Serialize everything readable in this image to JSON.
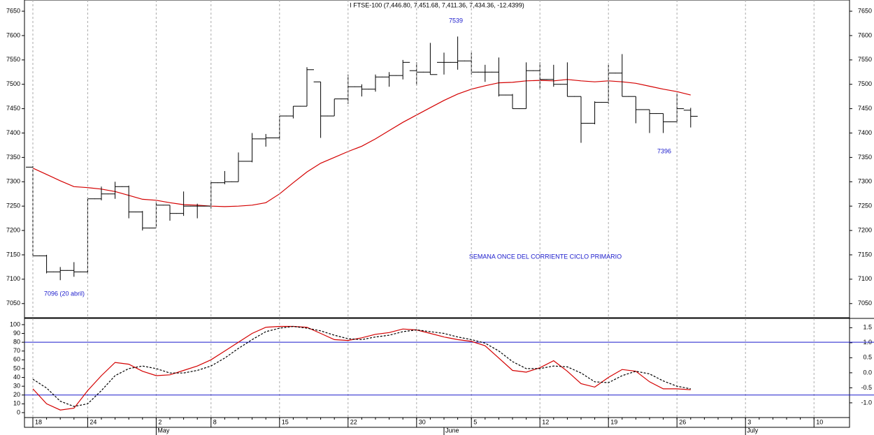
{
  "chart_data": [
    {
      "type": "ohlc",
      "title": "I FTSE-100 (7,446.80, 7,451.68, 7,411.36, 7,434.36, -12.4399)",
      "color": "#000000",
      "ylim": [
        7021,
        7673
      ],
      "yticks": [
        7050,
        7100,
        7150,
        7200,
        7250,
        7300,
        7350,
        7400,
        7450,
        7500,
        7550,
        7600,
        7650
      ],
      "open": [
        7330,
        7148,
        7115,
        7118,
        7115,
        7265,
        7275,
        7290,
        7238,
        7205,
        7252,
        7235,
        7250,
        7250,
        7298,
        7300,
        7342,
        7388,
        7390,
        7435,
        7455,
        7505,
        7435,
        7470,
        7495,
        7490,
        7515,
        7518,
        7528,
        7525,
        7545,
        7545,
        7548,
        7525,
        7525,
        7478,
        7450,
        7528,
        7510,
        7500,
        7475,
        7420,
        7463,
        7523,
        7475,
        7448,
        7440,
        7423,
        7446.8
      ],
      "high": [
        7332,
        7150,
        7125,
        7135,
        7268,
        7290,
        7300,
        7292,
        7240,
        7260,
        7252,
        7280,
        7255,
        7300,
        7322,
        7360,
        7400,
        7398,
        7435,
        7455,
        7535,
        7505,
        7470,
        7520,
        7500,
        7520,
        7525,
        7550,
        7545,
        7585,
        7565,
        7598,
        7565,
        7540,
        7555,
        7480,
        7545,
        7545,
        7540,
        7545,
        7475,
        7465,
        7540,
        7562,
        7475,
        7448,
        7440,
        7480,
        7451.68
      ],
      "low": [
        7145,
        7112,
        7098,
        7105,
        7110,
        7262,
        7265,
        7225,
        7200,
        7205,
        7220,
        7230,
        7225,
        7245,
        7295,
        7300,
        7340,
        7372,
        7385,
        7430,
        7455,
        7390,
        7435,
        7460,
        7475,
        7485,
        7495,
        7510,
        7498,
        7520,
        7520,
        7530,
        7520,
        7505,
        7475,
        7450,
        7450,
        7490,
        7495,
        7475,
        7380,
        7418,
        7460,
        7475,
        7420,
        7400,
        7400,
        7420,
        7411.36
      ],
      "close": [
        7148,
        7115,
        7118,
        7115,
        7265,
        7275,
        7290,
        7238,
        7205,
        7252,
        7235,
        7250,
        7250,
        7298,
        7300,
        7342,
        7388,
        7390,
        7435,
        7455,
        7530,
        7435,
        7470,
        7495,
        7490,
        7515,
        7518,
        7545,
        7525,
        7520,
        7545,
        7548,
        7525,
        7525,
        7478,
        7450,
        7528,
        7510,
        7500,
        7475,
        7420,
        7463,
        7523,
        7475,
        7448,
        7440,
        7423,
        7450,
        7434.36
      ],
      "series": [
        {
          "color": "#d40000",
          "values": [
            7328,
            7315,
            7302,
            7290,
            7288,
            7285,
            7280,
            7272,
            7264,
            7262,
            7257,
            7253,
            7252,
            7250,
            7249,
            7250,
            7252,
            7257,
            7275,
            7298,
            7320,
            7338,
            7350,
            7362,
            7373,
            7388,
            7405,
            7422,
            7437,
            7452,
            7467,
            7480,
            7490,
            7497,
            7503,
            7504,
            7507,
            7508,
            7507,
            7510,
            7507,
            7505,
            7507,
            7505,
            7502,
            7496,
            7490,
            7485,
            7478
          ]
        }
      ],
      "annotations": [
        "7539",
        "7396",
        "7096 (20 abril)",
        "SEMANA ONCE DEL CORRIENTE CICLO PRIMARIO"
      ],
      "annotation_color": "#1a1acc"
    },
    {
      "type": "line",
      "categories": [
        "18",
        null,
        null,
        null,
        "24",
        null,
        null,
        null,
        null,
        "2",
        null,
        null,
        null,
        "8",
        null,
        null,
        null,
        null,
        "15",
        null,
        null,
        null,
        null,
        "22",
        null,
        null,
        null,
        null,
        "30",
        null,
        null,
        null,
        "5",
        null,
        null,
        null,
        null,
        "12",
        null,
        null,
        null,
        null,
        "19",
        null,
        null,
        null,
        null,
        "26",
        null,
        null,
        null,
        null,
        "3",
        null,
        null,
        null,
        null,
        "10"
      ],
      "months": [
        null,
        null,
        null,
        null,
        null,
        null,
        null,
        null,
        null,
        "May",
        null,
        null,
        null,
        null,
        null,
        null,
        null,
        null,
        null,
        null,
        null,
        null,
        null,
        null,
        null,
        null,
        null,
        null,
        null,
        null,
        "June",
        null,
        null,
        null,
        null,
        null,
        null,
        null,
        null,
        null,
        null,
        null,
        null,
        null,
        null,
        null,
        null,
        null,
        null,
        null,
        null,
        null,
        "July",
        null,
        null,
        null,
        null,
        null
      ],
      "grid": true,
      "ylim": [
        -5.6,
        107.1
      ],
      "yticks": [
        0,
        10,
        20,
        30,
        40,
        50,
        60,
        70,
        80,
        90,
        100
      ],
      "y2lim": [
        -1.49,
        1.81
      ],
      "y2ticks": [
        1.5,
        {
          "value": 1.0,
          "label": "1.0"
        },
        0.5,
        {
          "value": 0.0,
          "label": "0.0"
        },
        -0.5,
        {
          "value": -1.0,
          "label": "-1.0"
        }
      ],
      "levels": [
        80,
        20
      ],
      "level_color": "#1a1acc",
      "series": [
        {
          "color": "#d40000",
          "values": [
            27,
            10,
            3,
            5,
            25,
            42,
            57,
            55,
            47,
            42,
            43,
            48,
            53,
            60,
            70,
            80,
            90,
            97,
            98,
            98,
            97,
            90,
            83,
            82,
            85,
            89,
            91,
            95,
            94,
            90,
            86,
            83,
            81,
            76,
            62,
            48,
            46,
            51,
            59,
            47,
            33,
            29,
            40,
            49,
            47,
            35,
            27,
            27,
            26,
            null,
            null,
            null,
            null,
            null,
            null,
            null,
            null,
            null
          ]
        },
        {
          "color": "#000000",
          "dashed": true,
          "values": [
            38,
            28,
            13,
            7,
            10,
            25,
            42,
            50,
            53,
            50,
            45,
            45,
            48,
            53,
            62,
            73,
            83,
            92,
            96,
            98,
            96,
            93,
            88,
            84,
            83,
            86,
            88,
            92,
            94,
            92,
            90,
            86,
            83,
            79,
            70,
            58,
            50,
            50,
            53,
            52,
            45,
            35,
            34,
            42,
            47,
            44,
            36,
            30,
            27,
            null,
            null,
            null,
            null,
            null,
            null,
            null,
            null,
            null
          ]
        }
      ]
    }
  ]
}
